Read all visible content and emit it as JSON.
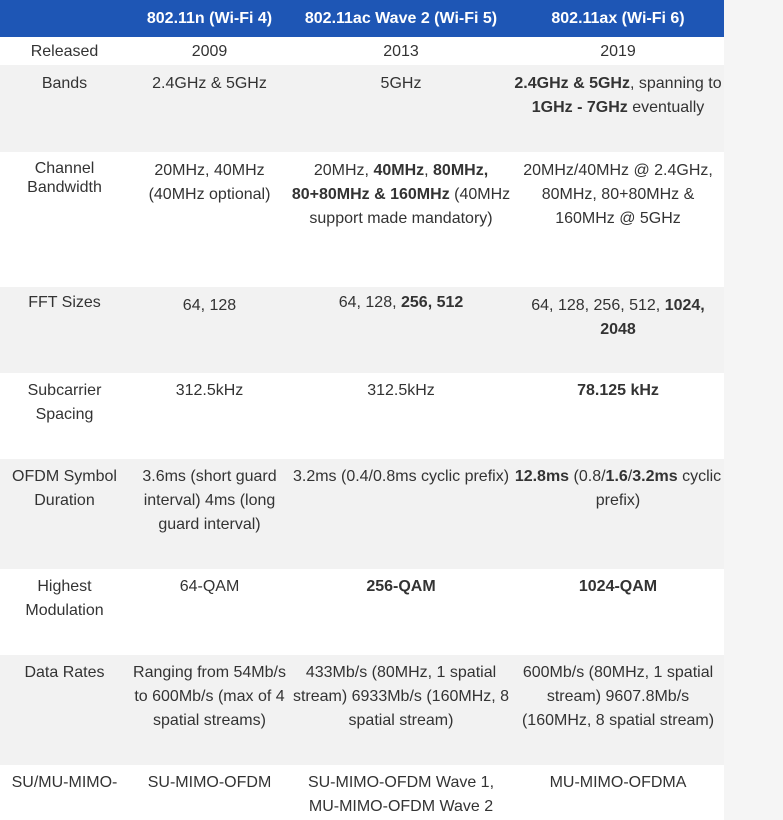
{
  "table": {
    "header": {
      "feature": "",
      "wifi4": "802.11n (Wi-Fi 4)",
      "wifi5": "802.11ac Wave 2 (Wi-Fi 5)",
      "wifi6": "802.11ax (Wi-Fi 6)"
    },
    "rows": {
      "released": {
        "label": "Released",
        "wifi4": "2009",
        "wifi5": "2013",
        "wifi6": "2019"
      },
      "bands": {
        "label": "Bands",
        "wifi4": "2.4GHz & 5GHz",
        "wifi5": "5GHz",
        "wifi6_part1_bold": "2.4GHz & 5GHz",
        "wifi6_part2": ", spanning to ",
        "wifi6_part3_bold": "1GHz - 7GHz",
        "wifi6_part4": " eventually"
      },
      "channel_bandwidth": {
        "label": "Channel Bandwidth",
        "wifi4": "20MHz, 40MHz (40MHz optional)",
        "wifi5_part1": "20MHz, ",
        "wifi5_part2_bold": "40MHz",
        "wifi5_part3": ", ",
        "wifi5_part4_bold": "80MHz, 80+80MHz & 160MHz",
        "wifi5_part5": " (40MHz support made mandatory)",
        "wifi6": "20MHz/40MHz @ 2.4GHz, 80MHz, 80+80MHz & 160MHz @ 5GHz"
      },
      "fft_sizes": {
        "label": "FFT Sizes",
        "wifi4": "64, 128",
        "wifi5_part1": "64, 128, ",
        "wifi5_part2_bold": "256, 512",
        "wifi6_part1": "64, 128, 256, 512, ",
        "wifi6_part2_bold": "1024, 2048"
      },
      "subcarrier_spacing": {
        "label": "Subcarrier Spacing",
        "wifi4": "312.5kHz",
        "wifi5": "312.5kHz",
        "wifi6_bold": "78.125 kHz"
      },
      "ofdm_symbol_duration": {
        "label": "OFDM Symbol Duration",
        "wifi4": "3.6ms (short guard interval) 4ms (long guard interval)",
        "wifi5": "3.2ms (0.4/0.8ms cyclic prefix)",
        "wifi6_part1_bold": "12.8ms",
        "wifi6_part2": " (0.8/",
        "wifi6_part3_bold": "1.6",
        "wifi6_part4": "/",
        "wifi6_part5_bold": "3.2ms",
        "wifi6_part6": " cyclic prefix)"
      },
      "highest_modulation": {
        "label": "Highest Modulation",
        "wifi4": "64-QAM",
        "wifi5_bold": "256-QAM",
        "wifi6_bold": "1024-QAM"
      },
      "data_rates": {
        "label": "Data Rates",
        "wifi4": "Ranging from 54Mb/s to 600Mb/s (max of 4 spatial streams)",
        "wifi5": "433Mb/s (80MHz, 1 spatial stream) 6933Mb/s (160MHz, 8 spatial stream)",
        "wifi6": "600Mb/s (80MHz, 1 spatial stream) 9607.8Mb/s (160MHz, 8 spatial stream)"
      },
      "mimo": {
        "label": "SU/MU-MIMO-",
        "wifi4": "SU-MIMO-OFDM",
        "wifi5": "SU-MIMO-OFDM Wave 1, MU-MIMO-OFDM Wave 2",
        "wifi6": "MU-MIMO-OFDMA"
      }
    }
  }
}
